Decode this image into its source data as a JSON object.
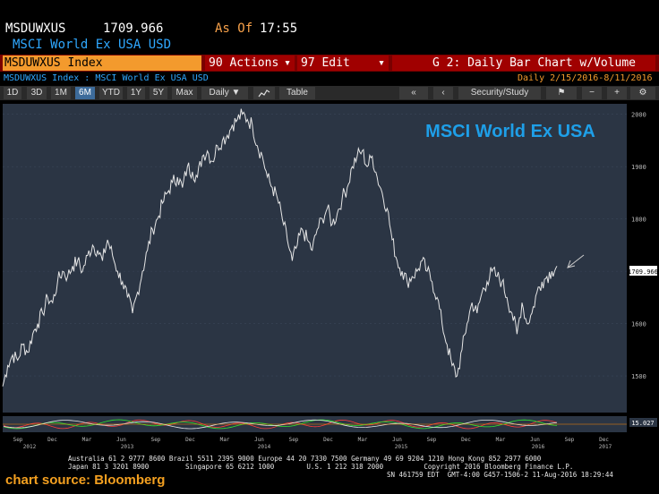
{
  "header": {
    "ticker": "MSDUWXUS",
    "last_price": "1709.966",
    "as_of_label": "As Of",
    "as_of_time": "17:55",
    "security_name": "MSCI World Ex USA USD"
  },
  "menubar": {
    "index_label": "MSDUWXUS Index",
    "actions_label": "90 Actions",
    "edit_label": "97 Edit",
    "chart_title": "G 2: Daily Bar Chart w/Volume"
  },
  "subheader": {
    "breadcrumb": "MSDUWXUS Index : MSCI World Ex USA USD",
    "range_label": "Daily  2/15/2016-8/11/2016"
  },
  "toolbar": {
    "periods": [
      "1D",
      "3D",
      "1M",
      "6M",
      "YTD",
      "1Y",
      "5Y",
      "Max"
    ],
    "active_period": "6M",
    "frequency": "Daily ▼",
    "table_label": "Table",
    "security_study_label": "Security/Study"
  },
  "colors": {
    "accent_blue": "#2fa8ff",
    "orange": "#f39a2d",
    "menu_red": "#a00000",
    "plot_bg": "#2b3544"
  },
  "chart_data": {
    "type": "line",
    "title": "MSCI World Ex USA",
    "y_ticks": [
      2000,
      1900,
      1800,
      1700,
      1600,
      1500
    ],
    "ylim": [
      1430,
      2020
    ],
    "last_value_label": "1709.966",
    "oscillator_value_label": "15.027",
    "x_month_labels": [
      "Sep",
      "Dec",
      "Mar",
      "Jun",
      "Sep",
      "Dec",
      "Mar",
      "Jun",
      "Sep",
      "Dec",
      "Mar",
      "Jun",
      "Sep",
      "Dec",
      "Mar",
      "Jun",
      "Sep",
      "Dec"
    ],
    "x_year_labels": [
      "2012",
      "2013",
      "2014",
      "2015",
      "2016",
      "2017"
    ],
    "series": [
      {
        "values": [
          1480,
          1520,
          1540,
          1530,
          1560,
          1545,
          1580,
          1600,
          1620,
          1650,
          1640,
          1680,
          1700,
          1690,
          1710,
          1720,
          1700,
          1730,
          1750,
          1740,
          1720,
          1760,
          1730,
          1700,
          1680,
          1650,
          1620,
          1660,
          1700,
          1740,
          1780,
          1800,
          1830,
          1850,
          1870,
          1880,
          1860,
          1900,
          1890,
          1880,
          1920,
          1930,
          1910,
          1940,
          1950,
          1960,
          1980,
          1990,
          2000,
          1990,
          1980,
          1940,
          1920,
          1880,
          1860,
          1840,
          1800,
          1760,
          1720,
          1750,
          1780,
          1760,
          1740,
          1780,
          1800,
          1820,
          1790,
          1810,
          1840,
          1860,
          1900,
          1920,
          1930,
          1900,
          1920,
          1880,
          1850,
          1820,
          1760,
          1720,
          1700,
          1680,
          1690,
          1700,
          1720,
          1700,
          1680,
          1650,
          1600,
          1560,
          1520,
          1500,
          1550,
          1600,
          1640,
          1620,
          1660,
          1680,
          1700,
          1690,
          1680,
          1650,
          1620,
          1580,
          1640,
          1600,
          1620,
          1660,
          1680,
          1690,
          1700,
          1710
        ]
      }
    ]
  },
  "footer": {
    "line1": "Australia 61 2 9777 8600 Brazil 5511 2395 9000 Europe 44 20 7330 7500 Germany 49 69 9204 1210 Hong Kong 852 2977 6000",
    "line2": "Japan 81 3 3201 8900         Singapore 65 6212 1000        U.S. 1 212 318 2000          Copyright 2016 Bloomberg Finance L.P.",
    "line3": "SN 461759 EDT  GMT-4:00 G457-1506-2 11-Aug-2016 18:29:44",
    "source": "chart source: Bloomberg"
  }
}
